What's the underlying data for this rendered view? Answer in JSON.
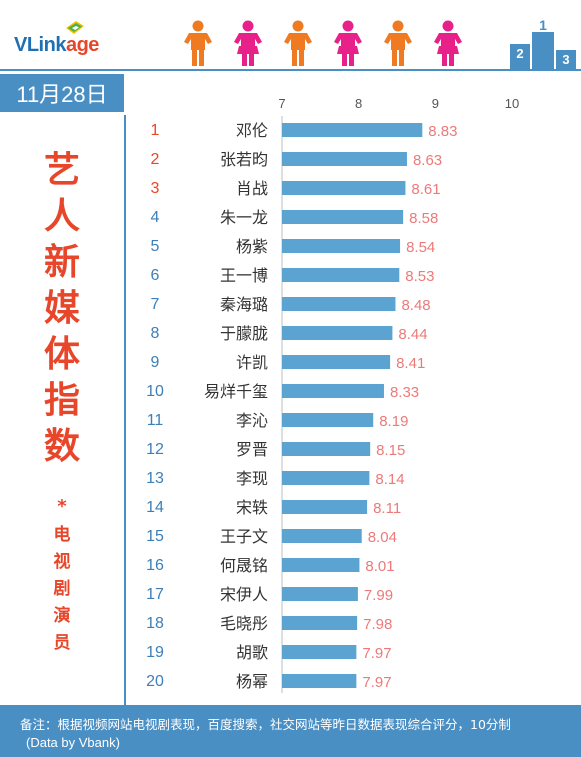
{
  "brand": {
    "logo_text": "VLinkage",
    "logo_blue": "VLink",
    "logo_red": "age"
  },
  "date": "11月28日",
  "title_chars": [
    "艺",
    "人",
    "新",
    "媒",
    "体",
    "指",
    "数"
  ],
  "star": "*",
  "subtitle_chars": [
    "电",
    "视",
    "剧",
    "演",
    "员"
  ],
  "footer": {
    "note": "备注：根据视频网站电视剧表现，百度搜索，社交网站等昨日数据表现综合评分，10分制",
    "source": "(Data by Vbank)"
  },
  "colors": {
    "bar": "#5ba3d0",
    "rank_top": "#e8462a",
    "rank_other": "#3d7fb8",
    "value_label": "#ec7a7a",
    "accent_blue": "#4a8fc4",
    "title_red": "#e8462a"
  },
  "chart_data": {
    "type": "bar",
    "orientation": "horizontal",
    "xlim": [
      7,
      10
    ],
    "x_ticks": [
      "7",
      "8",
      "9",
      "10"
    ],
    "ranks": [
      "1",
      "2",
      "3",
      "4",
      "5",
      "6",
      "7",
      "8",
      "9",
      "10",
      "11",
      "12",
      "13",
      "14",
      "15",
      "16",
      "17",
      "18",
      "19",
      "20"
    ],
    "categories": [
      "邓伦",
      "张若昀",
      "肖战",
      "朱一龙",
      "杨紫",
      "王一博",
      "秦海璐",
      "于朦胧",
      "许凯",
      "易烊千玺",
      "李沁",
      "罗晋",
      "李现",
      "宋轶",
      "王子文",
      "何晟铭",
      "宋伊人",
      "毛晓彤",
      "胡歌",
      "杨幂"
    ],
    "values": [
      8.83,
      8.63,
      8.61,
      8.58,
      8.54,
      8.53,
      8.48,
      8.44,
      8.41,
      8.33,
      8.19,
      8.15,
      8.14,
      8.11,
      8.04,
      8.01,
      7.99,
      7.98,
      7.97,
      7.97
    ],
    "value_labels": [
      "8.83",
      "8.63",
      "8.61",
      "8.58",
      "8.54",
      "8.53",
      "8.48",
      "8.44",
      "8.41",
      "8.33",
      "8.19",
      "8.15",
      "8.14",
      "8.11",
      "8.04",
      "8.01",
      "7.99",
      "7.98",
      "7.97",
      "7.97"
    ]
  }
}
